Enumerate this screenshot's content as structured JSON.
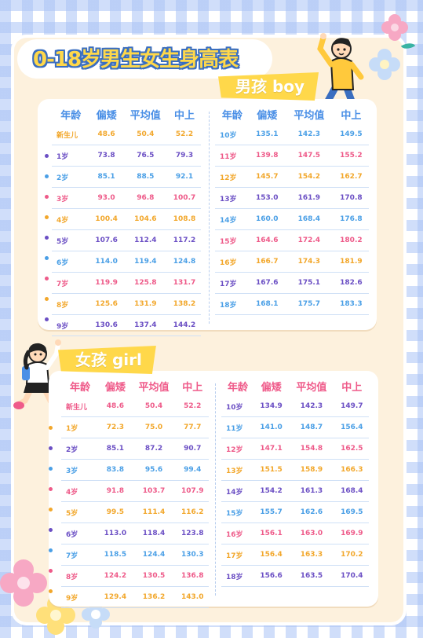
{
  "title": "0-18岁男生女生身高表",
  "boy": {
    "banner": "男孩 boy",
    "headers": [
      "年龄",
      "偏矮",
      "平均值",
      "中上"
    ],
    "left": [
      [
        "新生儿",
        "48.6",
        "50.4",
        "52.2"
      ],
      [
        "1岁",
        "73.8",
        "76.5",
        "79.3"
      ],
      [
        "2岁",
        "85.1",
        "88.5",
        "92.1"
      ],
      [
        "3岁",
        "93.0",
        "96.8",
        "100.7"
      ],
      [
        "4岁",
        "100.4",
        "104.6",
        "108.8"
      ],
      [
        "5岁",
        "107.6",
        "112.4",
        "117.2"
      ],
      [
        "6岁",
        "114.0",
        "119.4",
        "124.8"
      ],
      [
        "7岁",
        "119.9",
        "125.8",
        "131.7"
      ],
      [
        "8岁",
        "125.6",
        "131.9",
        "138.2"
      ],
      [
        "9岁",
        "130.6",
        "137.4",
        "144.2"
      ]
    ],
    "right": [
      [
        "10岁",
        "135.1",
        "142.3",
        "149.5"
      ],
      [
        "11岁",
        "139.8",
        "147.5",
        "155.2"
      ],
      [
        "12岁",
        "145.7",
        "154.2",
        "162.7"
      ],
      [
        "13岁",
        "153.0",
        "161.9",
        "170.8"
      ],
      [
        "14岁",
        "160.0",
        "168.4",
        "176.8"
      ],
      [
        "15岁",
        "164.6",
        "172.4",
        "180.2"
      ],
      [
        "16岁",
        "166.7",
        "174.3",
        "181.9"
      ],
      [
        "17岁",
        "167.6",
        "175.1",
        "182.6"
      ],
      [
        "18岁",
        "168.1",
        "175.7",
        "183.3"
      ]
    ]
  },
  "girl": {
    "banner": "女孩 girl",
    "headers": [
      "年龄",
      "偏矮",
      "平均值",
      "中上"
    ],
    "left": [
      [
        "新生儿",
        "48.6",
        "50.4",
        "52.2"
      ],
      [
        "1岁",
        "72.3",
        "75.0",
        "77.7"
      ],
      [
        "2岁",
        "85.1",
        "87.2",
        "90.7"
      ],
      [
        "3岁",
        "83.8",
        "95.6",
        "99.4"
      ],
      [
        "4岁",
        "91.8",
        "103.7",
        "107.9"
      ],
      [
        "5岁",
        "99.5",
        "111.4",
        "116.2"
      ],
      [
        "6岁",
        "113.0",
        "118.4",
        "123.8"
      ],
      [
        "7岁",
        "118.5",
        "124.4",
        "130.3"
      ],
      [
        "8岁",
        "124.2",
        "130.5",
        "136.8"
      ],
      [
        "9岁",
        "129.4",
        "136.2",
        "143.0"
      ]
    ],
    "right": [
      [
        "10岁",
        "134.9",
        "142.3",
        "149.7"
      ],
      [
        "11岁",
        "141.0",
        "148.7",
        "156.4"
      ],
      [
        "12岁",
        "147.1",
        "154.8",
        "162.5"
      ],
      [
        "13岁",
        "151.5",
        "158.9",
        "166.3"
      ],
      [
        "14岁",
        "154.2",
        "161.3",
        "168.4"
      ],
      [
        "15岁",
        "155.7",
        "162.6",
        "169.5"
      ],
      [
        "16岁",
        "156.1",
        "163.0",
        "169.9"
      ],
      [
        "17岁",
        "156.4",
        "163.3",
        "170.2"
      ],
      [
        "18岁",
        "156.6",
        "163.5",
        "170.4"
      ]
    ]
  },
  "colors": {
    "row_cycle": [
      "#f2a72b",
      "#6b4fc4",
      "#4a9fe6",
      "#ee5a89"
    ],
    "boy_header": "#4a8fe6",
    "girl_header": "#ef5b8a",
    "title_fill": "#ffd84a",
    "title_outline": "#3a6ec0",
    "panel": "#fdf1dd"
  }
}
